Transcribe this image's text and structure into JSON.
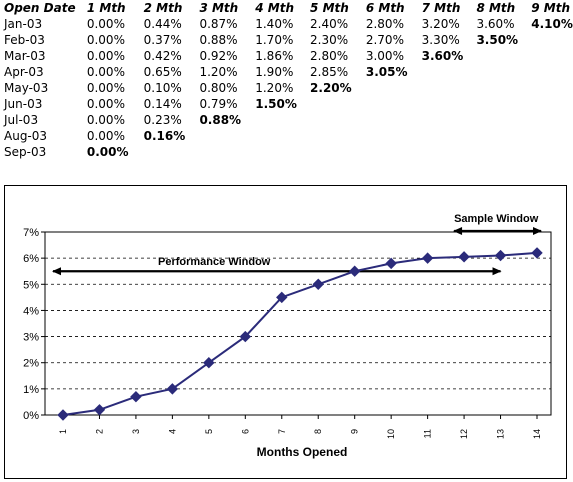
{
  "table": {
    "headers": [
      "Open Date",
      "1 Mth",
      "2 Mth",
      "3 Mth",
      "4 Mth",
      "5 Mth",
      "6 Mth",
      "7 Mth",
      "8 Mth",
      "9 Mth"
    ],
    "rows": [
      {
        "label": "Jan-03",
        "cells": [
          "0.00%",
          "0.44%",
          "0.87%",
          "1.40%",
          "2.40%",
          "2.80%",
          "3.20%",
          "3.60%",
          "4.10%"
        ],
        "bold_index": 8
      },
      {
        "label": "Feb-03",
        "cells": [
          "0.00%",
          "0.37%",
          "0.88%",
          "1.70%",
          "2.30%",
          "2.70%",
          "3.30%",
          "3.50%",
          ""
        ],
        "bold_index": 7
      },
      {
        "label": "Mar-03",
        "cells": [
          "0.00%",
          "0.42%",
          "0.92%",
          "1.86%",
          "2.80%",
          "3.00%",
          "3.60%",
          "",
          ""
        ],
        "bold_index": 6
      },
      {
        "label": "Apr-03",
        "cells": [
          "0.00%",
          "0.65%",
          "1.20%",
          "1.90%",
          "2.85%",
          "3.05%",
          "",
          "",
          ""
        ],
        "bold_index": 5
      },
      {
        "label": "May-03",
        "cells": [
          "0.00%",
          "0.10%",
          "0.80%",
          "1.20%",
          "2.20%",
          "",
          "",
          "",
          ""
        ],
        "bold_index": 4
      },
      {
        "label": "Jun-03",
        "cells": [
          "0.00%",
          "0.14%",
          "0.79%",
          "1.50%",
          "",
          "",
          "",
          "",
          ""
        ],
        "bold_index": 3
      },
      {
        "label": "Jul-03",
        "cells": [
          "0.00%",
          "0.23%",
          "0.88%",
          "",
          "",
          "",
          "",
          "",
          ""
        ],
        "bold_index": 2
      },
      {
        "label": "Aug-03",
        "cells": [
          "0.00%",
          "0.16%",
          "",
          "",
          "",
          "",
          "",
          "",
          ""
        ],
        "bold_index": 1
      },
      {
        "label": "Sep-03",
        "cells": [
          "0.00%",
          "",
          "",
          "",
          "",
          "",
          "",
          "",
          ""
        ],
        "bold_index": 0
      }
    ]
  },
  "chart_data": {
    "type": "line",
    "title": "",
    "xlabel": "Months Opened",
    "ylabel": "",
    "x": [
      1,
      2,
      3,
      4,
      5,
      6,
      7,
      8,
      9,
      10,
      11,
      12,
      13,
      14
    ],
    "xticks": [
      "1",
      "2",
      "3",
      "4",
      "5",
      "6",
      "7",
      "8",
      "9",
      "10",
      "11",
      "12",
      "13",
      "14"
    ],
    "yticks": [
      "0%",
      "1%",
      "2%",
      "3%",
      "4%",
      "5%",
      "6%",
      "7%"
    ],
    "ylim": [
      0,
      7
    ],
    "series": [
      {
        "values": [
          0.0,
          0.2,
          0.7,
          1.0,
          2.0,
          3.0,
          4.5,
          5.0,
          5.5,
          5.8,
          6.0,
          6.05,
          6.1,
          6.2
        ],
        "color": "#2b2b7a"
      }
    ],
    "grid": "horizontal dashed",
    "annotations": [
      {
        "text": "Performance Window",
        "from_x": 1,
        "to_x": 13,
        "y": 5.5
      },
      {
        "text": "Sample Window",
        "from_x": 12,
        "to_x": 14,
        "y": 7.0
      }
    ]
  }
}
